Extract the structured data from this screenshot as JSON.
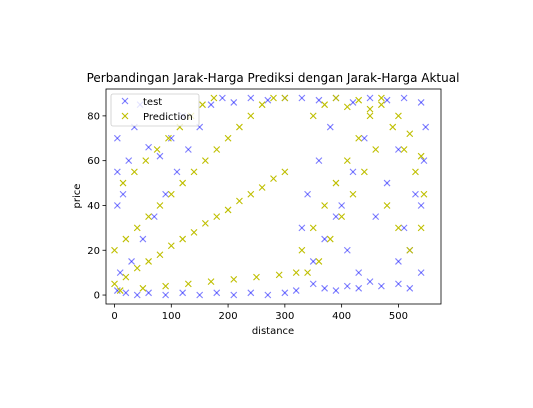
{
  "chart_data": {
    "type": "scatter",
    "title": "Perbandingan Jarak-Harga Prediksi dengan Jarak-Harga Aktual",
    "xlabel": "distance",
    "ylabel": "price",
    "xlim": [
      -15,
      575
    ],
    "ylim": [
      -4,
      92
    ],
    "x_ticks": [
      0,
      100,
      200,
      300,
      400,
      500
    ],
    "y_ticks": [
      0,
      20,
      40,
      60,
      80
    ],
    "marker": "x",
    "legend_position": "upper-left",
    "series": [
      {
        "name": "test",
        "color": "#0000ff",
        "alpha": 0.5,
        "points": [
          [
            5,
            2
          ],
          [
            20,
            1
          ],
          [
            40,
            0
          ],
          [
            60,
            1
          ],
          [
            90,
            0
          ],
          [
            120,
            1
          ],
          [
            150,
            0
          ],
          [
            180,
            1
          ],
          [
            210,
            0
          ],
          [
            240,
            1
          ],
          [
            270,
            0
          ],
          [
            300,
            1
          ],
          [
            320,
            2
          ],
          [
            10,
            10
          ],
          [
            30,
            15
          ],
          [
            50,
            25
          ],
          [
            70,
            35
          ],
          [
            90,
            45
          ],
          [
            110,
            55
          ],
          [
            130,
            65
          ],
          [
            150,
            75
          ],
          [
            170,
            85
          ],
          [
            190,
            88
          ],
          [
            210,
            86
          ],
          [
            240,
            88
          ],
          [
            270,
            87
          ],
          [
            300,
            88
          ],
          [
            330,
            88
          ],
          [
            360,
            87
          ],
          [
            390,
            88
          ],
          [
            420,
            86
          ],
          [
            450,
            88
          ],
          [
            480,
            87
          ],
          [
            510,
            88
          ],
          [
            540,
            86
          ],
          [
            5,
            40
          ],
          [
            5,
            55
          ],
          [
            5,
            70
          ],
          [
            15,
            45
          ],
          [
            25,
            60
          ],
          [
            35,
            75
          ],
          [
            45,
            85
          ],
          [
            60,
            66
          ],
          [
            80,
            62
          ],
          [
            100,
            70
          ],
          [
            120,
            80
          ],
          [
            350,
            5
          ],
          [
            370,
            3
          ],
          [
            390,
            2
          ],
          [
            410,
            4
          ],
          [
            430,
            3
          ],
          [
            450,
            6
          ],
          [
            470,
            4
          ],
          [
            500,
            5
          ],
          [
            520,
            3
          ],
          [
            330,
            30
          ],
          [
            340,
            45
          ],
          [
            360,
            60
          ],
          [
            380,
            75
          ],
          [
            400,
            40
          ],
          [
            420,
            55
          ],
          [
            440,
            70
          ],
          [
            460,
            35
          ],
          [
            480,
            50
          ],
          [
            500,
            65
          ],
          [
            520,
            20
          ],
          [
            540,
            40
          ],
          [
            545,
            60
          ],
          [
            548,
            75
          ],
          [
            500,
            15
          ],
          [
            510,
            30
          ],
          [
            530,
            45
          ],
          [
            540,
            10
          ],
          [
            350,
            15
          ],
          [
            370,
            25
          ],
          [
            390,
            35
          ],
          [
            410,
            20
          ],
          [
            430,
            10
          ]
        ]
      },
      {
        "name": "Prediction",
        "color": "#bfbf00",
        "alpha": 1.0,
        "points": [
          [
            0,
            5
          ],
          [
            20,
            8
          ],
          [
            40,
            12
          ],
          [
            60,
            15
          ],
          [
            80,
            18
          ],
          [
            100,
            22
          ],
          [
            120,
            25
          ],
          [
            140,
            28
          ],
          [
            160,
            32
          ],
          [
            180,
            35
          ],
          [
            200,
            38
          ],
          [
            220,
            42
          ],
          [
            240,
            45
          ],
          [
            260,
            48
          ],
          [
            280,
            52
          ],
          [
            300,
            55
          ],
          [
            0,
            20
          ],
          [
            20,
            25
          ],
          [
            40,
            30
          ],
          [
            60,
            35
          ],
          [
            80,
            40
          ],
          [
            100,
            45
          ],
          [
            120,
            50
          ],
          [
            140,
            55
          ],
          [
            160,
            60
          ],
          [
            180,
            65
          ],
          [
            200,
            70
          ],
          [
            220,
            75
          ],
          [
            240,
            80
          ],
          [
            260,
            85
          ],
          [
            280,
            88
          ],
          [
            300,
            88
          ],
          [
            10,
            2
          ],
          [
            50,
            3
          ],
          [
            90,
            4
          ],
          [
            130,
            5
          ],
          [
            170,
            6
          ],
          [
            210,
            7
          ],
          [
            250,
            8
          ],
          [
            290,
            9
          ],
          [
            320,
            10
          ],
          [
            15,
            50
          ],
          [
            35,
            55
          ],
          [
            55,
            60
          ],
          [
            75,
            65
          ],
          [
            95,
            70
          ],
          [
            115,
            75
          ],
          [
            135,
            80
          ],
          [
            155,
            85
          ],
          [
            175,
            88
          ],
          [
            330,
            20
          ],
          [
            350,
            30
          ],
          [
            370,
            40
          ],
          [
            390,
            50
          ],
          [
            410,
            60
          ],
          [
            430,
            70
          ],
          [
            450,
            80
          ],
          [
            470,
            85
          ],
          [
            490,
            75
          ],
          [
            510,
            65
          ],
          [
            530,
            55
          ],
          [
            545,
            45
          ],
          [
            340,
            10
          ],
          [
            360,
            15
          ],
          [
            380,
            25
          ],
          [
            400,
            35
          ],
          [
            420,
            45
          ],
          [
            440,
            55
          ],
          [
            460,
            65
          ],
          [
            480,
            40
          ],
          [
            500,
            30
          ],
          [
            520,
            20
          ],
          [
            540,
            30
          ],
          [
            350,
            80
          ],
          [
            370,
            85
          ],
          [
            390,
            88
          ],
          [
            410,
            84
          ],
          [
            430,
            87
          ],
          [
            450,
            83
          ],
          [
            470,
            88
          ],
          [
            500,
            80
          ],
          [
            520,
            72
          ],
          [
            540,
            62
          ]
        ]
      }
    ]
  }
}
